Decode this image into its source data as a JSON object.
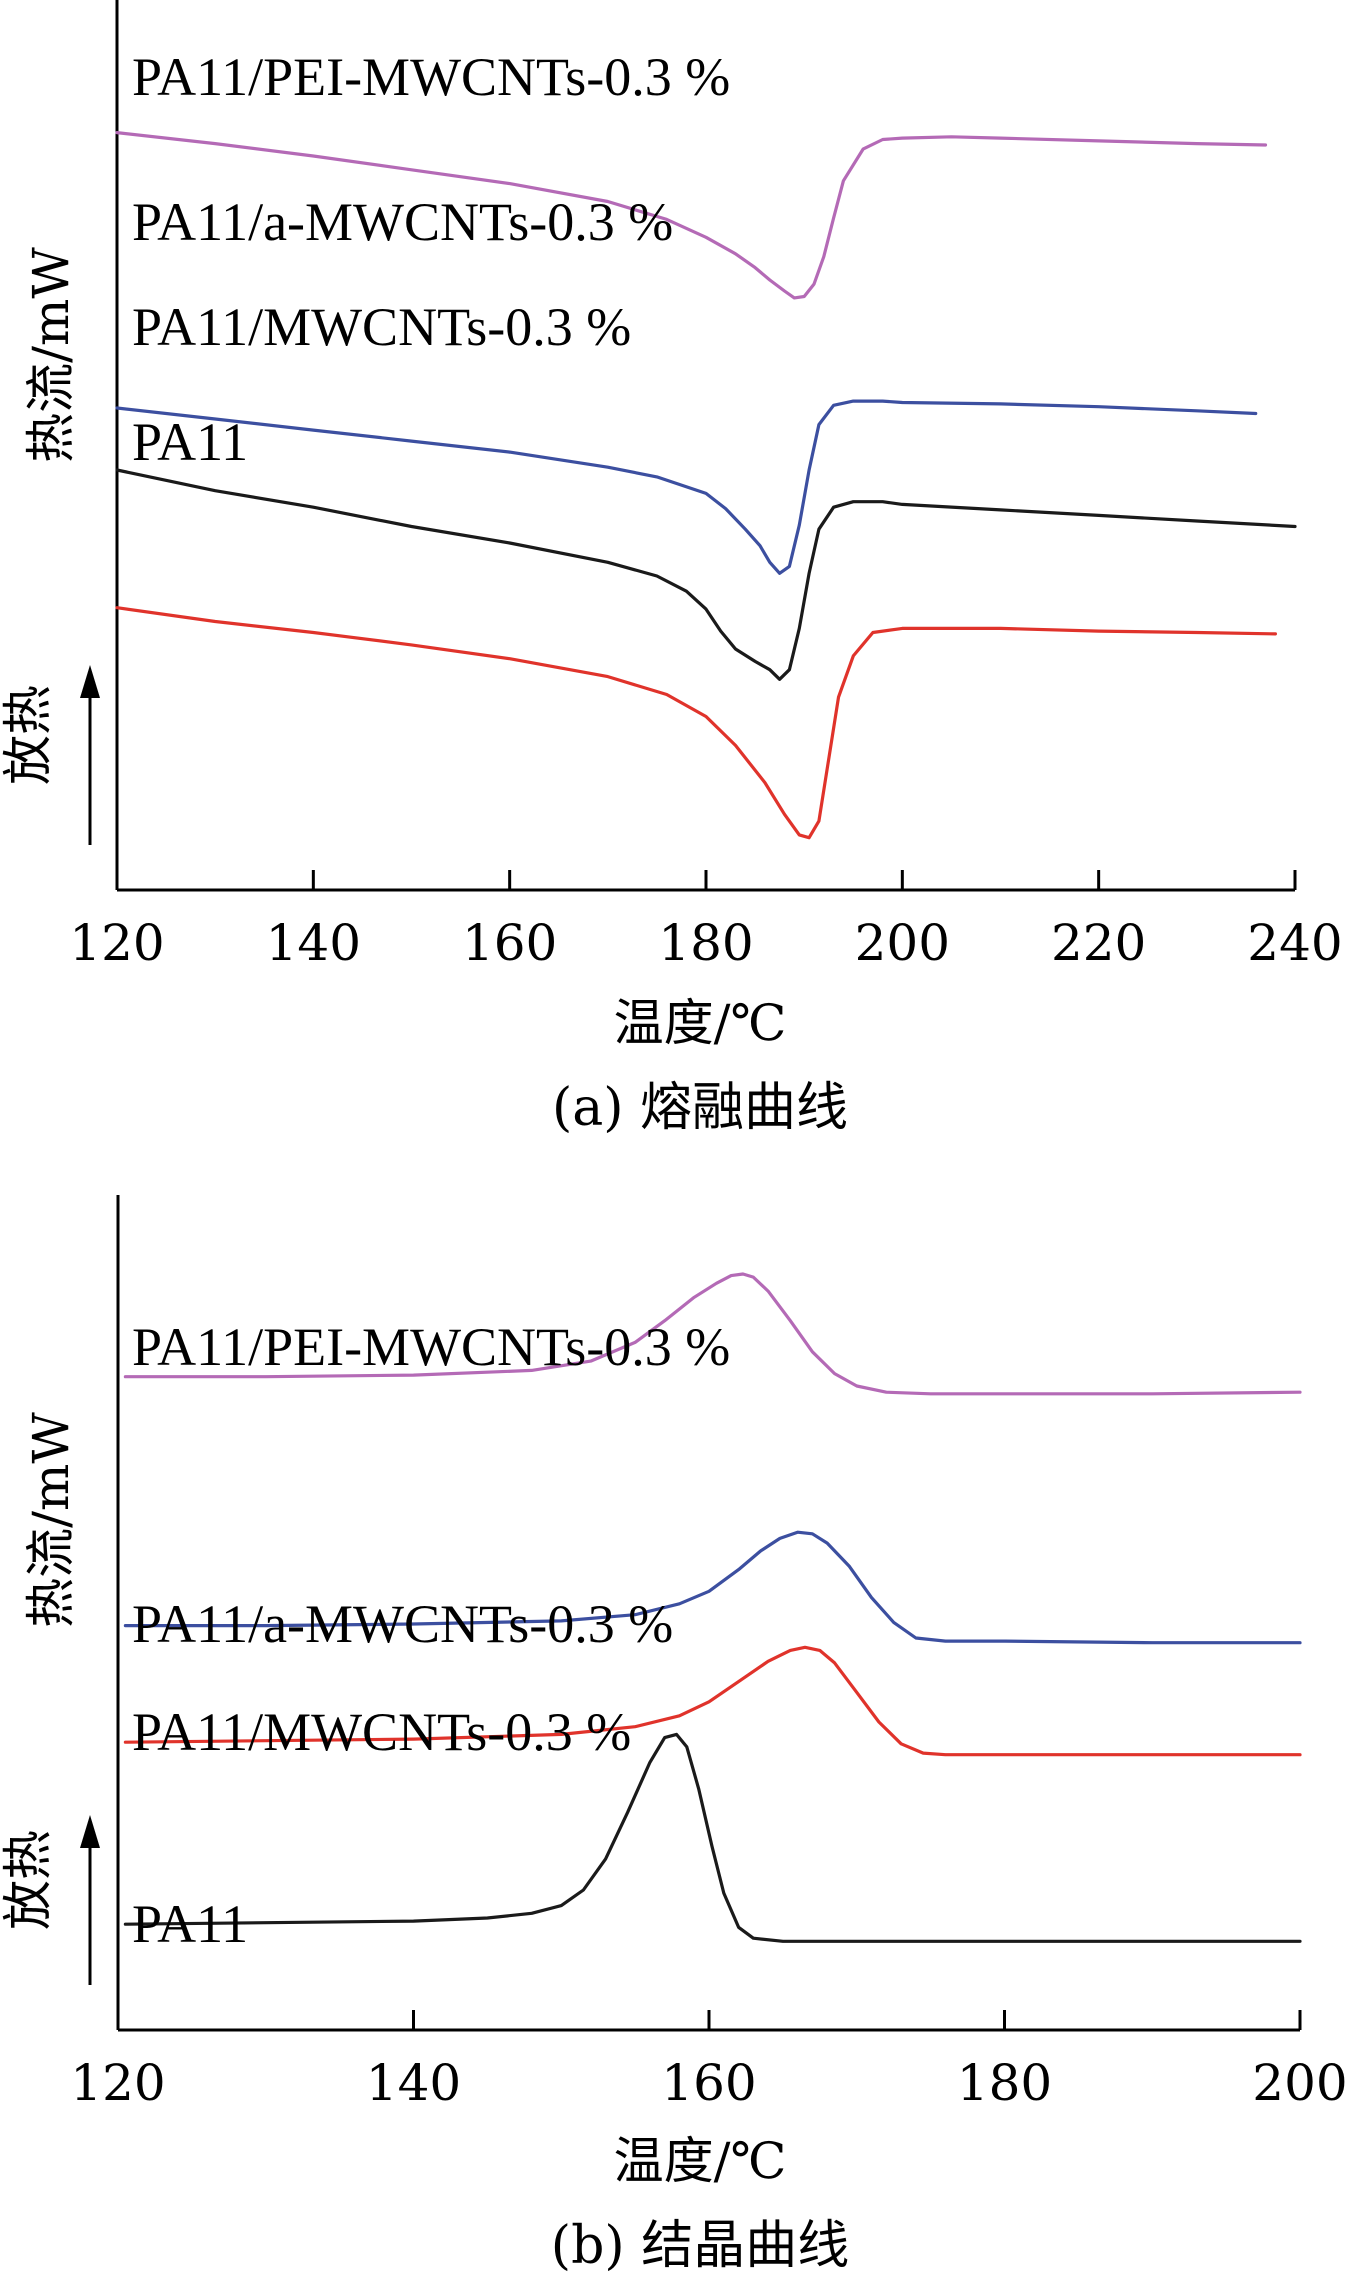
{
  "chart_data": [
    {
      "type": "line",
      "caption": "(a) 熔融曲线",
      "xlabel": "温度/℃",
      "ylabel": "热流/mW",
      "exo_label": "放热",
      "xlim": [
        120,
        240
      ],
      "xticks": [
        120,
        140,
        160,
        180,
        200,
        220,
        240
      ],
      "ylim": [
        -5.5,
        0.6
      ],
      "grid": false,
      "series": [
        {
          "name": "PA11/PEI-MWCNTs-0.3 %",
          "color": "#b46ab6",
          "x": [
            120,
            130,
            140,
            150,
            160,
            170,
            176,
            180,
            183,
            185,
            186.5,
            188,
            189,
            190,
            191,
            192,
            193,
            194,
            196,
            198,
            200,
            205,
            210,
            220,
            230,
            237
          ],
          "y": [
            0,
            -0.08,
            -0.17,
            -0.27,
            -0.37,
            -0.5,
            -0.63,
            -0.76,
            -0.88,
            -0.98,
            -1.07,
            -1.15,
            -1.2,
            -1.19,
            -1.1,
            -0.9,
            -0.62,
            -0.35,
            -0.12,
            -0.05,
            -0.04,
            -0.03,
            -0.04,
            -0.06,
            -0.08,
            -0.09
          ]
        },
        {
          "name": "PA11/a-MWCNTs-0.3 %",
          "color": "#3c4fa0",
          "x": [
            120,
            130,
            140,
            150,
            160,
            170,
            175,
            180,
            182,
            184,
            185.5,
            186.5,
            187.5,
            188.5,
            189.5,
            190.5,
            191.5,
            193,
            195,
            198,
            200,
            210,
            220,
            230,
            236
          ],
          "y": [
            -2.0,
            -2.08,
            -2.16,
            -2.24,
            -2.32,
            -2.43,
            -2.5,
            -2.62,
            -2.73,
            -2.88,
            -3.0,
            -3.12,
            -3.2,
            -3.15,
            -2.85,
            -2.45,
            -2.12,
            -1.98,
            -1.95,
            -1.95,
            -1.96,
            -1.97,
            -1.99,
            -2.02,
            -2.04
          ]
        },
        {
          "name": "PA11/MWCNTs-0.3 %",
          "color": "#e0332b",
          "x": [
            120,
            130,
            140,
            150,
            160,
            170,
            176,
            180,
            183,
            186,
            188,
            189.5,
            190.5,
            191.5,
            192.5,
            193.5,
            195,
            197,
            200,
            210,
            220,
            230,
            238
          ],
          "y": [
            -3.45,
            -3.55,
            -3.63,
            -3.72,
            -3.82,
            -3.95,
            -4.08,
            -4.24,
            -4.45,
            -4.72,
            -4.95,
            -5.1,
            -5.12,
            -5.0,
            -4.55,
            -4.1,
            -3.8,
            -3.63,
            -3.6,
            -3.6,
            -3.62,
            -3.63,
            -3.64
          ]
        },
        {
          "name": "PA11",
          "color": "#1a1a1a",
          "x": [
            120,
            130,
            140,
            150,
            160,
            170,
            175,
            178,
            180,
            181.5,
            183,
            185,
            186.5,
            187.5,
            188.5,
            189.5,
            190.5,
            191.5,
            193,
            195,
            198,
            200,
            210,
            220,
            230,
            240
          ],
          "y": [
            -2.45,
            -2.6,
            -2.72,
            -2.86,
            -2.98,
            -3.12,
            -3.22,
            -3.33,
            -3.46,
            -3.62,
            -3.75,
            -3.84,
            -3.9,
            -3.97,
            -3.9,
            -3.6,
            -3.2,
            -2.88,
            -2.72,
            -2.68,
            -2.68,
            -2.7,
            -2.74,
            -2.78,
            -2.82,
            -2.86
          ]
        }
      ]
    },
    {
      "type": "line",
      "caption": "(b) 结晶曲线",
      "xlabel": "温度/℃",
      "ylabel": "热流/mW",
      "exo_label": "放热",
      "xlim": [
        120,
        200
      ],
      "xticks": [
        120,
        140,
        160,
        180,
        200
      ],
      "ylim": [
        -4.2,
        0.75
      ],
      "grid": false,
      "series": [
        {
          "name": "PA11/PEI-MWCNTs-0.3 %",
          "color": "#b46ab6",
          "x": [
            120.5,
            130,
            140,
            148,
            152,
            155,
            157,
            159,
            160.5,
            161.5,
            162.3,
            163,
            164,
            165.5,
            167,
            168.5,
            170,
            172,
            175,
            180,
            190,
            200
          ],
          "y": [
            0,
            0,
            0.01,
            0.04,
            0.1,
            0.22,
            0.36,
            0.51,
            0.6,
            0.65,
            0.66,
            0.64,
            0.55,
            0.36,
            0.16,
            0.02,
            -0.06,
            -0.1,
            -0.11,
            -0.11,
            -0.11,
            -0.1
          ]
        },
        {
          "name": "PA11/a-MWCNTs-0.3 %",
          "color": "#3c4fa0",
          "x": [
            120.5,
            130,
            140,
            150,
            155,
            158,
            160,
            162,
            163.5,
            164.8,
            166,
            167,
            168,
            169.5,
            171,
            172.5,
            174,
            176,
            180,
            190,
            200
          ],
          "y": [
            -1.6,
            -1.6,
            -1.59,
            -1.57,
            -1.53,
            -1.46,
            -1.38,
            -1.24,
            -1.12,
            -1.04,
            -1.0,
            -1.01,
            -1.07,
            -1.22,
            -1.42,
            -1.58,
            -1.68,
            -1.7,
            -1.7,
            -1.71,
            -1.71
          ]
        },
        {
          "name": "PA11/MWCNTs-0.3 %",
          "color": "#e0332b",
          "x": [
            120.5,
            130,
            140,
            150,
            155,
            158,
            160,
            162,
            164,
            165.5,
            166.5,
            167.5,
            168.5,
            170,
            171.5,
            173,
            174.5,
            176,
            180,
            190,
            200
          ],
          "y": [
            -2.35,
            -2.34,
            -2.33,
            -2.3,
            -2.25,
            -2.18,
            -2.09,
            -1.96,
            -1.83,
            -1.76,
            -1.74,
            -1.76,
            -1.84,
            -2.03,
            -2.22,
            -2.36,
            -2.42,
            -2.43,
            -2.43,
            -2.43,
            -2.43
          ]
        },
        {
          "name": "PA11",
          "color": "#1a1a1a",
          "x": [
            120.5,
            130,
            140,
            145,
            148,
            150,
            151.5,
            153,
            154.5,
            156,
            157,
            157.8,
            158.5,
            159.3,
            160.2,
            161,
            162,
            163,
            165,
            170,
            180,
            190,
            200
          ],
          "y": [
            -3.52,
            -3.51,
            -3.5,
            -3.48,
            -3.45,
            -3.4,
            -3.3,
            -3.1,
            -2.8,
            -2.48,
            -2.32,
            -2.3,
            -2.38,
            -2.65,
            -3.02,
            -3.32,
            -3.54,
            -3.61,
            -3.63,
            -3.63,
            -3.63,
            -3.63,
            -3.63
          ]
        }
      ]
    }
  ]
}
